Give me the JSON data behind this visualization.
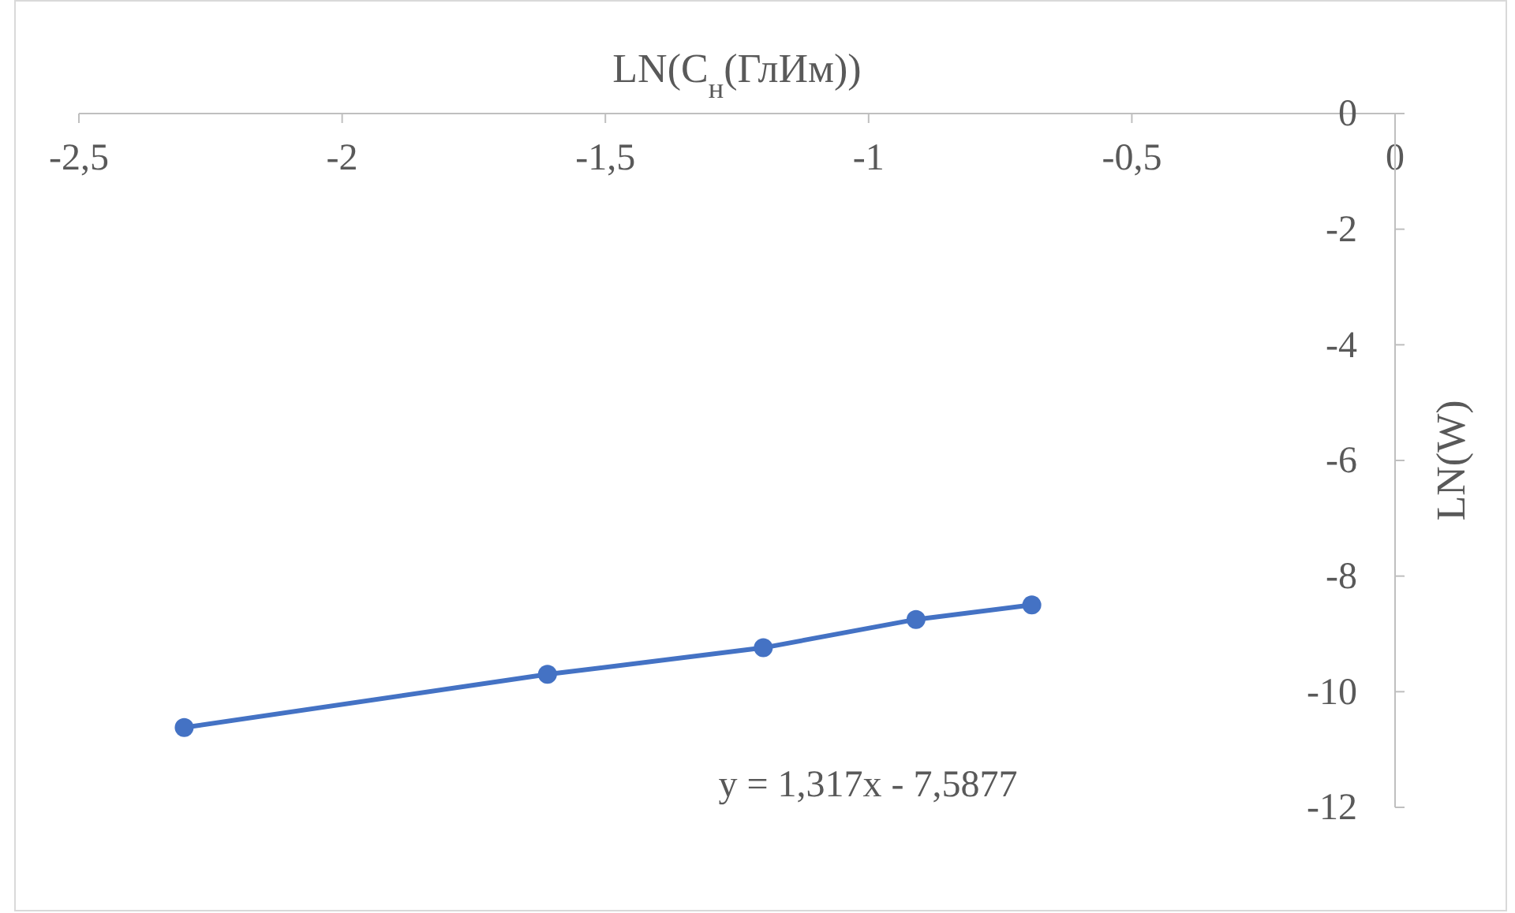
{
  "chart_data": {
    "type": "line",
    "xlabel": "LN(C$_{н}$(ГлИм))",
    "ylabel": "LN(W)",
    "x": [
      -2.3,
      -1.61,
      -1.2,
      -0.91,
      -0.69
    ],
    "series": [
      {
        "color": "#4472c4",
        "values": [
          -10.62,
          -9.7,
          -9.24,
          -8.75,
          -8.5
        ]
      }
    ],
    "xlim": [
      -2.5,
      0
    ],
    "xticks": [
      {
        "value": -2.5,
        "label": "-2,5"
      },
      -2,
      {
        "value": -1.5,
        "label": "-1,5"
      },
      -1,
      {
        "value": -0.5,
        "label": "-0,5"
      },
      0
    ],
    "ylim": [
      -12,
      0
    ],
    "yticks": [
      -12,
      -10,
      -8,
      -6,
      -4,
      -2,
      0
    ],
    "marker": "circle",
    "grid": false,
    "legend": false,
    "annotations": [
      "y = 1,317x - 7,5877"
    ]
  }
}
